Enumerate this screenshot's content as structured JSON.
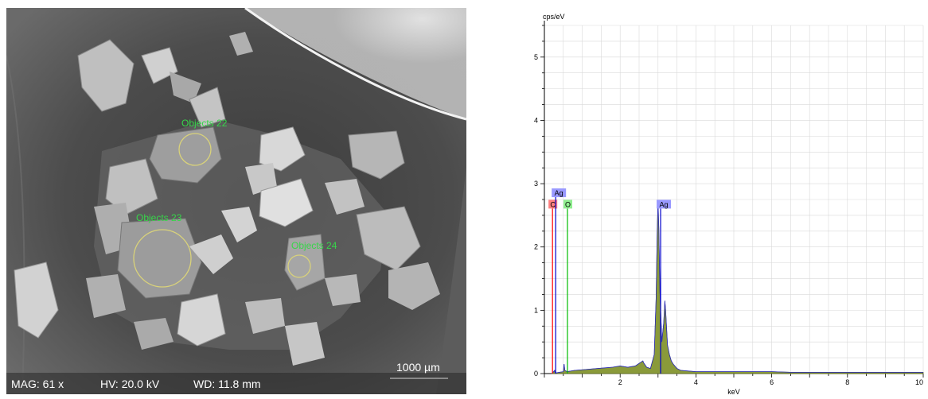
{
  "sem": {
    "mag": "MAG: 61 x",
    "hv": "HV: 20.0 kV",
    "wd": "WD: 11.8 mm",
    "scale": "1000 µm",
    "objects": [
      "Objects 22",
      "Objects 23",
      "Objects 24"
    ]
  },
  "chart_data": {
    "type": "line",
    "ylabel": "cps/eV",
    "xlabel": "keV",
    "xlim": [
      0,
      10
    ],
    "ylim": [
      0,
      5.5
    ],
    "x_ticks": [
      2,
      4,
      6,
      8,
      10
    ],
    "y_ticks": [
      0,
      1,
      2,
      3,
      4,
      5
    ],
    "grid": true,
    "series": [
      {
        "x": [
          0.2,
          0.27,
          0.28,
          0.3,
          0.4,
          0.5,
          0.52,
          0.54,
          0.6,
          0.8,
          1.0,
          1.2,
          1.4,
          1.6,
          1.8,
          2.0,
          2.2,
          2.4,
          2.6,
          2.62,
          2.7,
          2.8,
          2.9,
          2.95,
          2.98,
          3.0,
          3.02,
          3.05,
          3.1,
          3.15,
          3.18,
          3.2,
          3.25,
          3.3,
          3.35,
          3.4,
          3.5,
          3.6,
          3.8,
          4.0,
          4.5,
          5.0,
          5.5,
          6.0,
          6.5,
          7.0,
          7.5,
          8.0,
          8.5,
          9.0,
          9.5,
          10.0
        ],
        "y": [
          0,
          0.05,
          0.02,
          0.01,
          0.02,
          0.03,
          0.15,
          0.05,
          0.03,
          0.05,
          0.06,
          0.07,
          0.08,
          0.09,
          0.1,
          0.12,
          0.1,
          0.12,
          0.2,
          0.17,
          0.1,
          0.08,
          0.3,
          1.2,
          2.3,
          2.72,
          2.3,
          1.3,
          0.5,
          0.8,
          1.15,
          1.0,
          0.45,
          0.3,
          0.2,
          0.15,
          0.08,
          0.05,
          0.04,
          0.03,
          0.03,
          0.03,
          0.03,
          0.03,
          0.02,
          0.02,
          0.02,
          0.02,
          0.02,
          0.02,
          0.02,
          0.02
        ]
      }
    ],
    "peaks": [
      {
        "element": "C",
        "kev": 0.277,
        "height": 2.72,
        "color": "#ff7f7f",
        "line": "#ff0000"
      },
      {
        "element": "Ag",
        "kev": 0.277,
        "height": 2.9,
        "color": "#9999ff",
        "line": "#0000cc"
      },
      {
        "element": "O",
        "kev": 0.525,
        "height": 2.72,
        "color": "#90ee90",
        "line": "#00bb00"
      },
      {
        "element": "Ag",
        "kev": 2.984,
        "height": 2.72,
        "color": "#9999ff",
        "line": "#0000cc"
      }
    ]
  }
}
